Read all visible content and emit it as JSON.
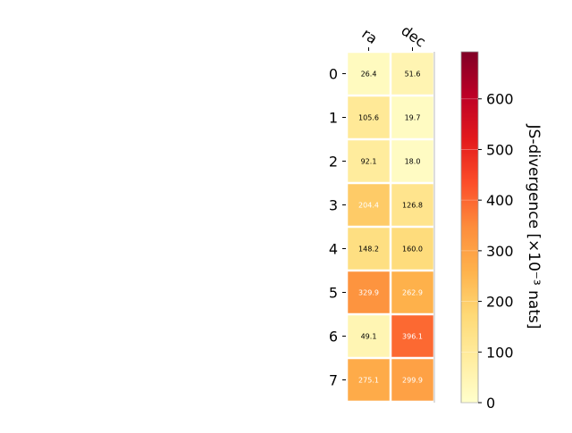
{
  "chart_data": {
    "type": "heatmap",
    "title": "",
    "columns": [
      "ra",
      "dec"
    ],
    "rows": [
      "0",
      "1",
      "2",
      "3",
      "4",
      "5",
      "6",
      "7"
    ],
    "values": [
      [
        26.4,
        51.6
      ],
      [
        105.6,
        19.7
      ],
      [
        92.1,
        18.0
      ],
      [
        204.4,
        126.8
      ],
      [
        148.2,
        160.0
      ],
      [
        329.9,
        262.9
      ],
      [
        49.1,
        396.1
      ],
      [
        275.1,
        299.9
      ]
    ],
    "cell_labels": [
      [
        "26.4",
        "51.6"
      ],
      [
        "105.6",
        "19.7"
      ],
      [
        "92.1",
        "18.0"
      ],
      [
        "204.4",
        "126.8"
      ],
      [
        "148.2",
        "160.0"
      ],
      [
        "329.9",
        "262.9"
      ],
      [
        "49.1",
        "396.1"
      ],
      [
        "275.1",
        "299.9"
      ]
    ],
    "colormap": "YlOrRd",
    "colorbar": {
      "label": "JS-divergence [×10⁻³ nats]",
      "range": [
        0,
        693
      ],
      "ticks": [
        0,
        100,
        200,
        300,
        400,
        500,
        600
      ],
      "tick_labels": [
        "0",
        "100",
        "200",
        "300",
        "400",
        "500",
        "600"
      ]
    }
  }
}
